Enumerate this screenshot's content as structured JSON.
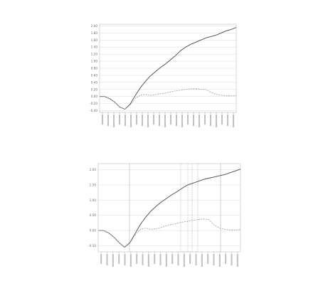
{
  "chart_data": [
    {
      "type": "line",
      "title": "",
      "xlabel": "",
      "ylabel": "",
      "grid": "horizontal",
      "y_ticks": [
        "2.00",
        "1.80",
        "1.60",
        "1.40",
        "1.20",
        "1.00",
        "0.80",
        "0.60",
        "0.40",
        "0.20",
        "0.00",
        "-0.20",
        "-0.40"
      ],
      "ylim": [
        -0.45,
        2.05
      ],
      "x_tick_count": 24,
      "series": [
        {
          "values": [
            0.0,
            0.0,
            -0.06,
            -0.16,
            -0.3,
            -0.36,
            -0.22,
            0.02,
            0.24,
            0.42,
            0.58,
            0.7,
            0.82,
            0.92,
            1.04,
            1.16,
            1.3,
            1.4,
            1.48,
            1.54,
            1.6,
            1.66,
            1.7,
            1.74,
            1.8,
            1.86,
            1.9,
            1.96
          ]
        },
        {
          "values": [
            0.0,
            0.0,
            -0.06,
            -0.16,
            -0.3,
            -0.36,
            -0.24,
            -0.06,
            0.04,
            0.06,
            0.03,
            0.05,
            0.08,
            0.1,
            0.13,
            0.16,
            0.18,
            0.2,
            0.22,
            0.22,
            0.21,
            0.2,
            0.12,
            0.06,
            0.04,
            0.02,
            0.02,
            0.03
          ]
        }
      ]
    },
    {
      "type": "line",
      "title": "",
      "xlabel": "",
      "ylabel": "",
      "grid": "horizontal",
      "y_ticks": [
        "2.00",
        "1.50",
        "1.00",
        "0.50",
        "0.00",
        "-0.50"
      ],
      "ylim": [
        -0.7,
        2.2
      ],
      "x_tick_count": 24,
      "vertical_markers": 6,
      "series": [
        {
          "values": [
            0.0,
            0.0,
            -0.08,
            -0.22,
            -0.4,
            -0.55,
            -0.4,
            -0.1,
            0.2,
            0.44,
            0.64,
            0.8,
            0.94,
            1.06,
            1.18,
            1.28,
            1.4,
            1.5,
            1.56,
            1.62,
            1.68,
            1.72,
            1.76,
            1.8,
            1.84,
            1.9,
            1.96,
            2.02
          ]
        },
        {
          "values": [
            0.0,
            0.0,
            -0.08,
            -0.22,
            -0.4,
            -0.55,
            -0.42,
            -0.14,
            0.04,
            0.08,
            0.04,
            0.06,
            0.1,
            0.16,
            0.2,
            0.24,
            0.28,
            0.3,
            0.34,
            0.36,
            0.38,
            0.36,
            0.18,
            0.08,
            0.04,
            0.02,
            0.02,
            0.03
          ]
        }
      ]
    }
  ]
}
